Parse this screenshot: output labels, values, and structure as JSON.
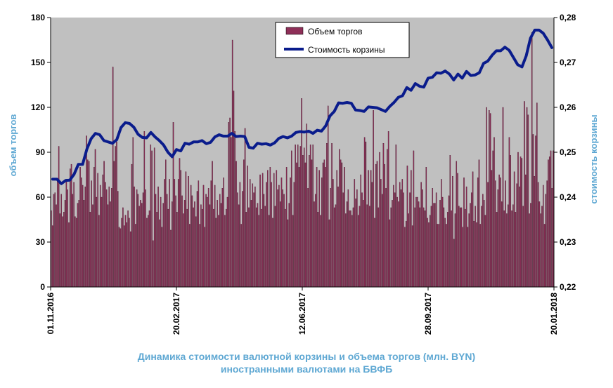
{
  "chart_data": {
    "type": "bar",
    "title": "",
    "caption_line1": "Динамика стоимости валютной корзины и объема торгов (млн. BYN)",
    "caption_line2": "иностранными валютами на БВФБ",
    "left_axis": {
      "label": "объем торгов",
      "ylim": [
        0,
        180
      ],
      "ticks": [
        "0",
        "30",
        "60",
        "90",
        "120",
        "150",
        "180"
      ]
    },
    "right_axis": {
      "label": "стоимость корзины",
      "ylim": [
        0.22,
        0.28
      ],
      "ticks": [
        "0,22",
        "0,23",
        "0,24",
        "0,25",
        "0,26",
        "0,27",
        "0,28"
      ]
    },
    "x_tick_labels": [
      "01.11.2016",
      "20.02.2017",
      "12.06.2017",
      "28.09.2017",
      "20.01.2018"
    ],
    "x_tick_positions": [
      0,
      77,
      154,
      231,
      308
    ],
    "legend": {
      "placement": "top-center",
      "bars": "Объем торгов",
      "line": "Стоимость корзины"
    },
    "grid": false,
    "colors": {
      "plot_bg": "#c0c0c0",
      "bar": "#8e2f58",
      "line": "#0a1c8c",
      "axis_title": "#5fa8d3"
    },
    "series": [
      {
        "name": "Объем торгов",
        "kind": "bar",
        "values": [
          51,
          41,
          62,
          63,
          55,
          71,
          94,
          49,
          62,
          47,
          50,
          58,
          72,
          65,
          43,
          79,
          82,
          62,
          70,
          47,
          46,
          56,
          58,
          80,
          73,
          68,
          58,
          67,
          101,
          85,
          84,
          50,
          71,
          55,
          80,
          92,
          60,
          76,
          48,
          68,
          60,
          75,
          84,
          70,
          65,
          55,
          67,
          57,
          66,
          147,
          84,
          94,
          97,
          64,
          40,
          39,
          46,
          53,
          41,
          48,
          43,
          51,
          46,
          37,
          82,
          100,
          67,
          42,
          65,
          62,
          54,
          58,
          56,
          63,
          104,
          65,
          46,
          48,
          51,
          95,
          91,
          31,
          93,
          62,
          50,
          67,
          45,
          60,
          40,
          56,
          72,
          85,
          62,
          52,
          72,
          38,
          57,
          110,
          72,
          61,
          50,
          72,
          86,
          78,
          61,
          49,
          58,
          77,
          52,
          74,
          42,
          68,
          61,
          53,
          57,
          47,
          64,
          71,
          42,
          55,
          52,
          68,
          40,
          62,
          60,
          66,
          55,
          71,
          84,
          52,
          68,
          46,
          58,
          48,
          62,
          56,
          66,
          73,
          48,
          52,
          60,
          110,
          113,
          100,
          165,
          131,
          104,
          84,
          63,
          55,
          70,
          42,
          64,
          85,
          106,
          50,
          81,
          53,
          72,
          58,
          69,
          63,
          67,
          53,
          56,
          48,
          75,
          52,
          76,
          62,
          54,
          70,
          78,
          48,
          80,
          70,
          46,
          76,
          54,
          78,
          65,
          68,
          57,
          73,
          65,
          62,
          52,
          80,
          45,
          56,
          73,
          91,
          48,
          70,
          95,
          83,
          95,
          80,
          94,
          126,
          88,
          93,
          83,
          109,
          66,
          88,
          95,
          85,
          95,
          57,
          62,
          80,
          50,
          78,
          48,
          73,
          83,
          85,
          80,
          96,
          121,
          45,
          66,
          96,
          72,
          53,
          55,
          78,
          67,
          92,
          85,
          83,
          63,
          80,
          49,
          57,
          65,
          51,
          51,
          48,
          53,
          72,
          59,
          65,
          48,
          54,
          75,
          63,
          58,
          100,
          97,
          55,
          78,
          54,
          78,
          70,
          118,
          46,
          82,
          84,
          53,
          90,
          72,
          62,
          96,
          82,
          66,
          92,
          104,
          45,
          53,
          58,
          68,
          63,
          95,
          60,
          57,
          70,
          65,
          72,
          63,
          40,
          44,
          81,
          49,
          63,
          78,
          41,
          91,
          53,
          60,
          60,
          57,
          53,
          70,
          65,
          53,
          51,
          80,
          46,
          43,
          48,
          54,
          66,
          56,
          56,
          63,
          42,
          42,
          58,
          72,
          60,
          53,
          46,
          42,
          50,
          61,
          88,
          51,
          74,
          32,
          49,
          84,
          76,
          54,
          53,
          53,
          40,
          73,
          52,
          67,
          40,
          49,
          56,
          63,
          77,
          44,
          54,
          43,
          73,
          85,
          42,
          54,
          62,
          58,
          48,
          120,
          70,
          118,
          116,
          78,
          91,
          100,
          71,
          50,
          65,
          75,
          73,
          57,
          120,
          51,
          71,
          49,
          55,
          100,
          88,
          51,
          55,
          77,
          50,
          69,
          90,
          67,
          87,
          86,
          54,
          124,
          75,
          120,
          115,
          49,
          56,
          170,
          102,
          74,
          101,
          123,
          70,
          57,
          49,
          54,
          68,
          42,
          62,
          71,
          85,
          87,
          91,
          66,
          91
        ]
      },
      {
        "name": "Стоимость корзины",
        "kind": "line",
        "values": [
          0.244,
          0.244,
          0.243,
          0.2437,
          0.2438,
          0.2451,
          0.2473,
          0.2473,
          0.2507,
          0.253,
          0.2542,
          0.2539,
          0.2526,
          0.2523,
          0.252,
          0.2528,
          0.2555,
          0.2566,
          0.2564,
          0.2556,
          0.254,
          0.2533,
          0.2532,
          0.2544,
          0.2534,
          0.2526,
          0.2516,
          0.25,
          0.249,
          0.2506,
          0.2503,
          0.252,
          0.2518,
          0.2523,
          0.2523,
          0.2526,
          0.2519,
          0.2522,
          0.2534,
          0.2539,
          0.2536,
          0.2536,
          0.2542,
          0.2535,
          0.2536,
          0.2535,
          0.2511,
          0.2509,
          0.252,
          0.2518,
          0.2519,
          0.2516,
          0.2521,
          0.2531,
          0.2535,
          0.2532,
          0.2536,
          0.2544,
          0.2546,
          0.2545,
          0.2547,
          0.2542,
          0.2549,
          0.2547,
          0.2559,
          0.2581,
          0.2591,
          0.261,
          0.2609,
          0.2611,
          0.2609,
          0.2594,
          0.2593,
          0.2591,
          0.2601,
          0.26,
          0.2599,
          0.2595,
          0.2591,
          0.2602,
          0.2611,
          0.2622,
          0.2626,
          0.2644,
          0.2638,
          0.2653,
          0.2647,
          0.2645,
          0.2665,
          0.2667,
          0.2677,
          0.2676,
          0.2681,
          0.2674,
          0.2661,
          0.2674,
          0.2665,
          0.268,
          0.2671,
          0.2672,
          0.2677,
          0.2698,
          0.2703,
          0.2716,
          0.2726,
          0.2726,
          0.2734,
          0.2727,
          0.2711,
          0.2695,
          0.269,
          0.2715,
          0.2754,
          0.2772,
          0.2772,
          0.2765,
          0.275,
          0.2733
        ]
      }
    ]
  }
}
